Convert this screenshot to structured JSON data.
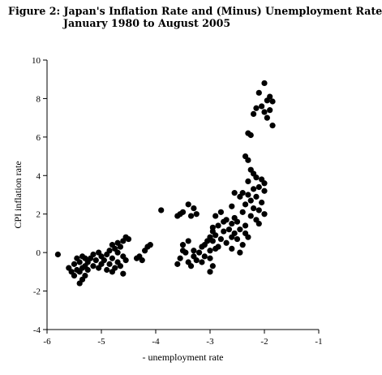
{
  "chart_data": {
    "type": "scatter",
    "title": "Figure 2: Japan's Inflation Rate and (Minus) Unemployment Rate",
    "subtitle": "January 1980 to August 2005",
    "xlabel": "- unemployment rate",
    "ylabel": "CPI inflation rate",
    "xlim": [
      -6,
      -1
    ],
    "ylim": [
      -4,
      10
    ],
    "xticks": [
      -6,
      -5,
      -4,
      -3,
      -2,
      -1
    ],
    "yticks": [
      -4,
      -2,
      0,
      2,
      4,
      6,
      8,
      10
    ],
    "marker_color": "#000000",
    "grid": false,
    "legend": "none",
    "points": [
      [
        -2.0,
        8.8
      ],
      [
        -2.1,
        8.3
      ],
      [
        -1.9,
        8.1
      ],
      [
        -1.95,
        7.9
      ],
      [
        -1.85,
        7.85
      ],
      [
        -2.05,
        7.6
      ],
      [
        -2.15,
        7.5
      ],
      [
        -1.9,
        7.4
      ],
      [
        -2.0,
        7.3
      ],
      [
        -2.2,
        7.2
      ],
      [
        -1.95,
        7.0
      ],
      [
        -1.85,
        6.6
      ],
      [
        -2.3,
        6.2
      ],
      [
        -2.25,
        6.1
      ],
      [
        -2.35,
        5.0
      ],
      [
        -2.3,
        4.8
      ],
      [
        -2.25,
        4.3
      ],
      [
        -2.2,
        4.1
      ],
      [
        -2.15,
        3.9
      ],
      [
        -2.05,
        3.8
      ],
      [
        -2.3,
        3.7
      ],
      [
        -2.0,
        3.6
      ],
      [
        -2.1,
        3.4
      ],
      [
        -2.2,
        3.3
      ],
      [
        -2.4,
        3.1
      ],
      [
        -2.55,
        3.1
      ],
      [
        -2.0,
        3.2
      ],
      [
        -2.3,
        3.0
      ],
      [
        -2.15,
        2.9
      ],
      [
        -2.45,
        2.9
      ],
      [
        -2.25,
        2.7
      ],
      [
        -2.05,
        2.6
      ],
      [
        -2.35,
        2.5
      ],
      [
        -2.6,
        2.4
      ],
      [
        -2.2,
        2.3
      ],
      [
        -2.1,
        2.2
      ],
      [
        -2.4,
        2.1
      ],
      [
        -2.8,
        2.1
      ],
      [
        -2.0,
        2.0
      ],
      [
        -2.25,
        1.9
      ],
      [
        -2.55,
        1.8
      ],
      [
        -2.15,
        1.7
      ],
      [
        -2.75,
        1.6
      ],
      [
        -2.1,
        1.5
      ],
      [
        -2.9,
        1.9
      ],
      [
        -2.7,
        1.7
      ],
      [
        -2.6,
        1.5
      ],
      [
        -2.5,
        1.6
      ],
      [
        -2.35,
        1.4
      ],
      [
        -2.85,
        1.4
      ],
      [
        -2.95,
        1.3
      ],
      [
        -2.65,
        1.2
      ],
      [
        -2.45,
        1.2
      ],
      [
        -2.75,
        1.1
      ],
      [
        -2.55,
        1.0
      ],
      [
        -2.35,
        1.0
      ],
      [
        -2.9,
        0.9
      ],
      [
        -2.6,
        0.8
      ],
      [
        -2.8,
        0.7
      ],
      [
        -2.5,
        0.7
      ],
      [
        -2.95,
        0.6
      ],
      [
        -2.7,
        0.5
      ],
      [
        -2.4,
        0.4
      ],
      [
        -2.85,
        0.3
      ],
      [
        -2.6,
        0.2
      ],
      [
        -2.45,
        0.0
      ],
      [
        -2.3,
        0.8
      ],
      [
        -2.95,
        1.1
      ],
      [
        -3.0,
        0.8
      ],
      [
        -3.05,
        0.6
      ],
      [
        -3.1,
        0.4
      ],
      [
        -2.9,
        0.2
      ],
      [
        -3.0,
        0.1
      ],
      [
        -3.15,
        0.3
      ],
      [
        -3.2,
        0.0
      ],
      [
        -3.3,
        0.1
      ],
      [
        -3.1,
        -0.2
      ],
      [
        -3.0,
        -0.3
      ],
      [
        -3.25,
        -0.4
      ],
      [
        -2.95,
        -0.7
      ],
      [
        -3.0,
        -1.0
      ],
      [
        -3.4,
        0.6
      ],
      [
        -3.5,
        0.4
      ],
      [
        -3.45,
        0.0
      ],
      [
        -3.3,
        -0.2
      ],
      [
        -3.4,
        -0.5
      ],
      [
        -3.55,
        -0.3
      ],
      [
        -3.6,
        -0.6
      ],
      [
        -3.35,
        -0.7
      ],
      [
        -3.15,
        -0.5
      ],
      [
        -3.5,
        0.1
      ],
      [
        -3.4,
        2.5
      ],
      [
        -3.3,
        2.3
      ],
      [
        -3.5,
        2.1
      ],
      [
        -3.6,
        1.9
      ],
      [
        -3.35,
        1.9
      ],
      [
        -3.25,
        2.0
      ],
      [
        -3.55,
        2.0
      ],
      [
        -3.9,
        2.2
      ],
      [
        -4.1,
        0.4
      ],
      [
        -4.15,
        0.3
      ],
      [
        -4.2,
        0.1
      ],
      [
        -4.3,
        -0.2
      ],
      [
        -4.35,
        -0.3
      ],
      [
        -4.25,
        -0.4
      ],
      [
        -4.55,
        0.8
      ],
      [
        -4.5,
        0.7
      ],
      [
        -4.6,
        0.6
      ],
      [
        -4.7,
        0.5
      ],
      [
        -4.8,
        0.4
      ],
      [
        -4.65,
        0.3
      ],
      [
        -4.75,
        0.2
      ],
      [
        -4.85,
        0.1
      ],
      [
        -4.7,
        0.0
      ],
      [
        -4.9,
        -0.1
      ],
      [
        -4.6,
        -0.2
      ],
      [
        -4.8,
        -0.3
      ],
      [
        -4.95,
        -0.4
      ],
      [
        -4.7,
        -0.5
      ],
      [
        -4.85,
        -0.6
      ],
      [
        -4.65,
        -0.7
      ],
      [
        -4.75,
        -0.8
      ],
      [
        -4.8,
        -1.0
      ],
      [
        -4.6,
        -1.1
      ],
      [
        -4.9,
        -0.9
      ],
      [
        -4.55,
        -0.4
      ],
      [
        -5.05,
        0.0
      ],
      [
        -5.15,
        -0.1
      ],
      [
        -5.0,
        -0.2
      ],
      [
        -5.2,
        -0.3
      ],
      [
        -5.1,
        -0.4
      ],
      [
        -5.25,
        -0.5
      ],
      [
        -5.0,
        -0.6
      ],
      [
        -5.3,
        -0.3
      ],
      [
        -5.15,
        -0.7
      ],
      [
        -5.05,
        -0.8
      ],
      [
        -5.35,
        -0.2
      ],
      [
        -5.25,
        -0.9
      ],
      [
        -5.4,
        -0.5
      ],
      [
        -5.3,
        -0.7
      ],
      [
        -5.35,
        -0.8
      ],
      [
        -5.45,
        -0.9
      ],
      [
        -5.5,
        -0.6
      ],
      [
        -5.4,
        -1.0
      ],
      [
        -5.5,
        -1.2
      ],
      [
        -5.3,
        -1.2
      ],
      [
        -5.35,
        -1.4
      ],
      [
        -5.4,
        -1.6
      ],
      [
        -5.6,
        -0.8
      ],
      [
        -5.55,
        -1.0
      ],
      [
        -5.8,
        -0.1
      ],
      [
        -5.45,
        -0.3
      ]
    ]
  }
}
